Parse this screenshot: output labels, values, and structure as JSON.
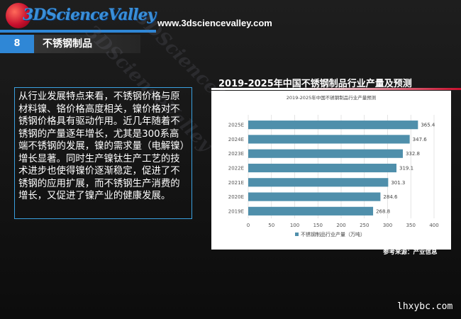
{
  "header": {
    "logo_text": "3DScienceValley",
    "url": "www.3dsciencevalley.com"
  },
  "section": {
    "number": "8",
    "title": "不锈钢制品"
  },
  "body_text": "从行业发展特点来看，不锈钢价格与原材料镍、铬价格高度相关，镍价格对不锈钢价格具有驱动作用。近几年随着不锈钢的产量逐年增长，尤其是300系高端不锈钢的发展，镍的需求量（电解镍）增长显著。同时生产镍钛生产工艺的技术进步也使得镍价逐渐稳定，促进了不锈钢的应用扩展，而不锈钢生产消费的增长，又促进了镍产业的健康发展。",
  "chart_heading": "2019-2025年中国不锈钢制品行业产量及预测",
  "source_note": "参考来源：产业信息",
  "corner_watermark": "lhxybc.com",
  "colors": {
    "accent_blue": "#2f87d6",
    "bar": "#4f8fab",
    "brand_red": "#c8102e"
  },
  "chart_data": {
    "type": "bar",
    "orientation": "horizontal",
    "title": "2019-2025年中国不锈钢制品行业产量预测",
    "categories": [
      "2025E",
      "2024E",
      "2023E",
      "2022E",
      "2021E",
      "2020E",
      "2019E"
    ],
    "series": [
      {
        "name": "不锈钢制品行业产量（万吨）",
        "values": [
          365.4,
          347.6,
          332.8,
          319.1,
          301.3,
          284.6,
          268.8
        ]
      }
    ],
    "xlim": [
      0,
      400
    ],
    "xticks": [
      0,
      50,
      100,
      150,
      200,
      250,
      300,
      350,
      400
    ],
    "grid": true,
    "legend_position": "bottom"
  }
}
